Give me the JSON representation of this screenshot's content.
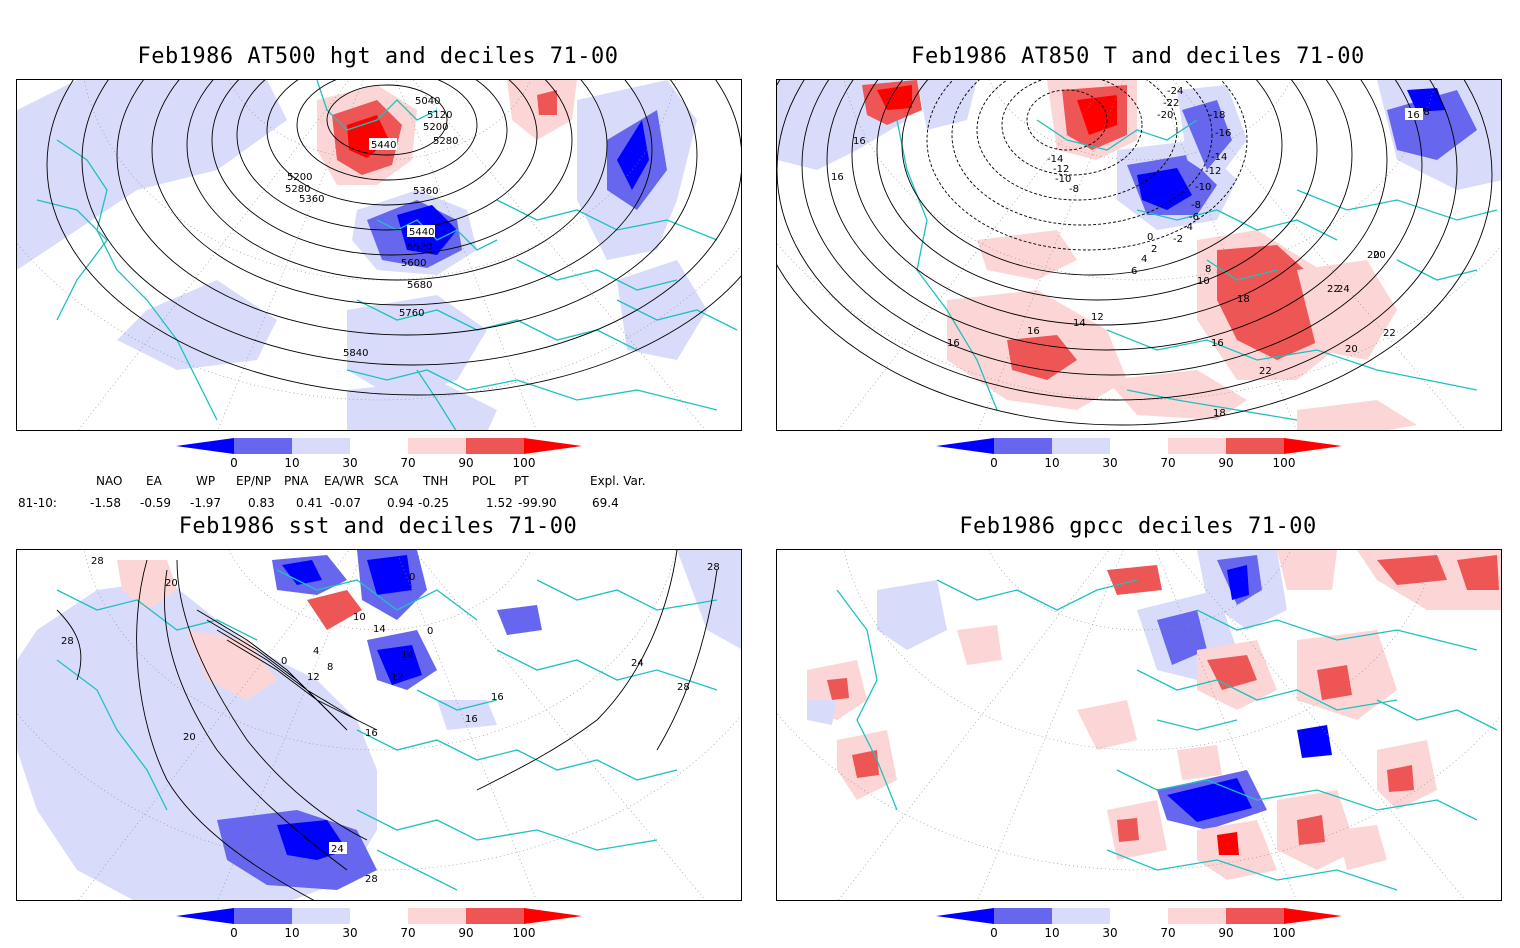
{
  "panels": [
    {
      "title": "Feb1986 AT500 hgt and deciles 71-00",
      "contour_labels": [
        "5040",
        "5120",
        "5200",
        "5280",
        "5200",
        "5280",
        "5360",
        "5440",
        "5360",
        "5440",
        "5520",
        "5600",
        "5680",
        "5760",
        "5840"
      ]
    },
    {
      "title": "Feb1986 AT850 T and deciles 71-00",
      "contour_labels": [
        "-24",
        "-22",
        "-20",
        "-18",
        "-16",
        "-14",
        "-12",
        "-10",
        "-8",
        "-14",
        "-12",
        "-10",
        "-8",
        "-6",
        "-4",
        "-2",
        "0",
        "2",
        "4",
        "6",
        "8",
        "10",
        "12",
        "14",
        "16",
        "18",
        "20",
        "22",
        "24",
        "16",
        "16",
        "16",
        "18",
        "16",
        "20",
        "22",
        "20",
        "22",
        "16",
        "18"
      ]
    },
    {
      "title": "Feb1986 sst and deciles 71-00",
      "contour_labels": [
        "28",
        "20",
        "28",
        "0",
        "4",
        "8",
        "12",
        "10",
        "14",
        "14",
        "0",
        "0",
        "12",
        "16",
        "16",
        "16",
        "20",
        "24",
        "28",
        "24",
        "28",
        "28"
      ]
    },
    {
      "title": "Feb1986 gpcc deciles 71-00",
      "contour_labels": []
    }
  ],
  "colorbar": {
    "labels": [
      "0",
      "10",
      "30",
      "70",
      "90",
      "100"
    ],
    "colors": [
      "#0000ff",
      "#6666ee",
      "#d8dcfa",
      "#ffffff",
      "#fcd6d6",
      "#ee5555",
      "#ff0000"
    ]
  },
  "indices": {
    "headers": [
      "NAO",
      "EA",
      "WP",
      "EP/NP",
      "PNA",
      "EA/WR",
      "SCA",
      "TNH",
      "POL",
      "PT",
      "Expl. Var."
    ],
    "row_label": "81-10:",
    "values": [
      "-1.58",
      "-0.59",
      "-1.97",
      "0.83",
      "0.41",
      "-0.07",
      "0.94",
      "-0.25",
      "1.52",
      "-99.90",
      "69.4"
    ]
  },
  "colors": {
    "coast": "#20c0c0",
    "contour": "#000000",
    "grid": "#888888"
  }
}
